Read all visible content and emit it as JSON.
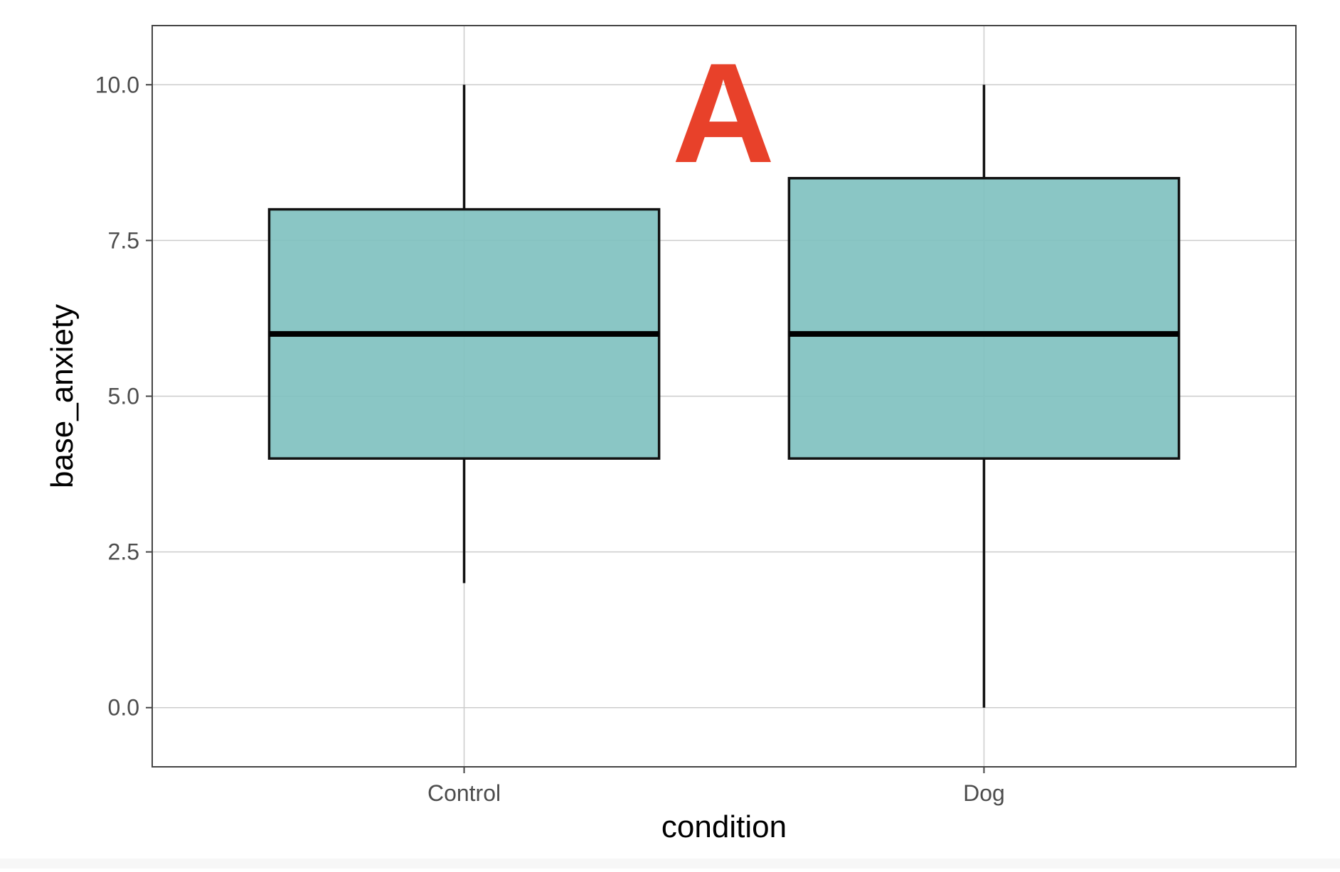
{
  "chart_data": {
    "type": "boxplot",
    "title": "",
    "xlabel": "condition",
    "ylabel": "base_anxiety",
    "ylim": [
      -0.95,
      10.95
    ],
    "yticks": [
      0.0,
      2.5,
      5.0,
      7.5,
      10.0
    ],
    "ytick_labels": [
      "0.0",
      "2.5",
      "5.0",
      "7.5",
      "10.0"
    ],
    "categories": [
      "Control",
      "Dog"
    ],
    "boxes": [
      {
        "category": "Control",
        "min": 2,
        "q1": 4,
        "median": 6,
        "q3": 8,
        "max": 10
      },
      {
        "category": "Dog",
        "min": 0,
        "q1": 4,
        "median": 6,
        "q3": 8.5,
        "max": 10
      }
    ],
    "grid": true,
    "annotation": "A",
    "colors": {
      "box_fill": "#80c1c0",
      "box_outline": "#111111",
      "annotation": "#e8412a",
      "grid": "#cccccc",
      "panel_border": "#444444",
      "tick_label": "#4d4d4d",
      "axis_title": "#000000"
    }
  }
}
